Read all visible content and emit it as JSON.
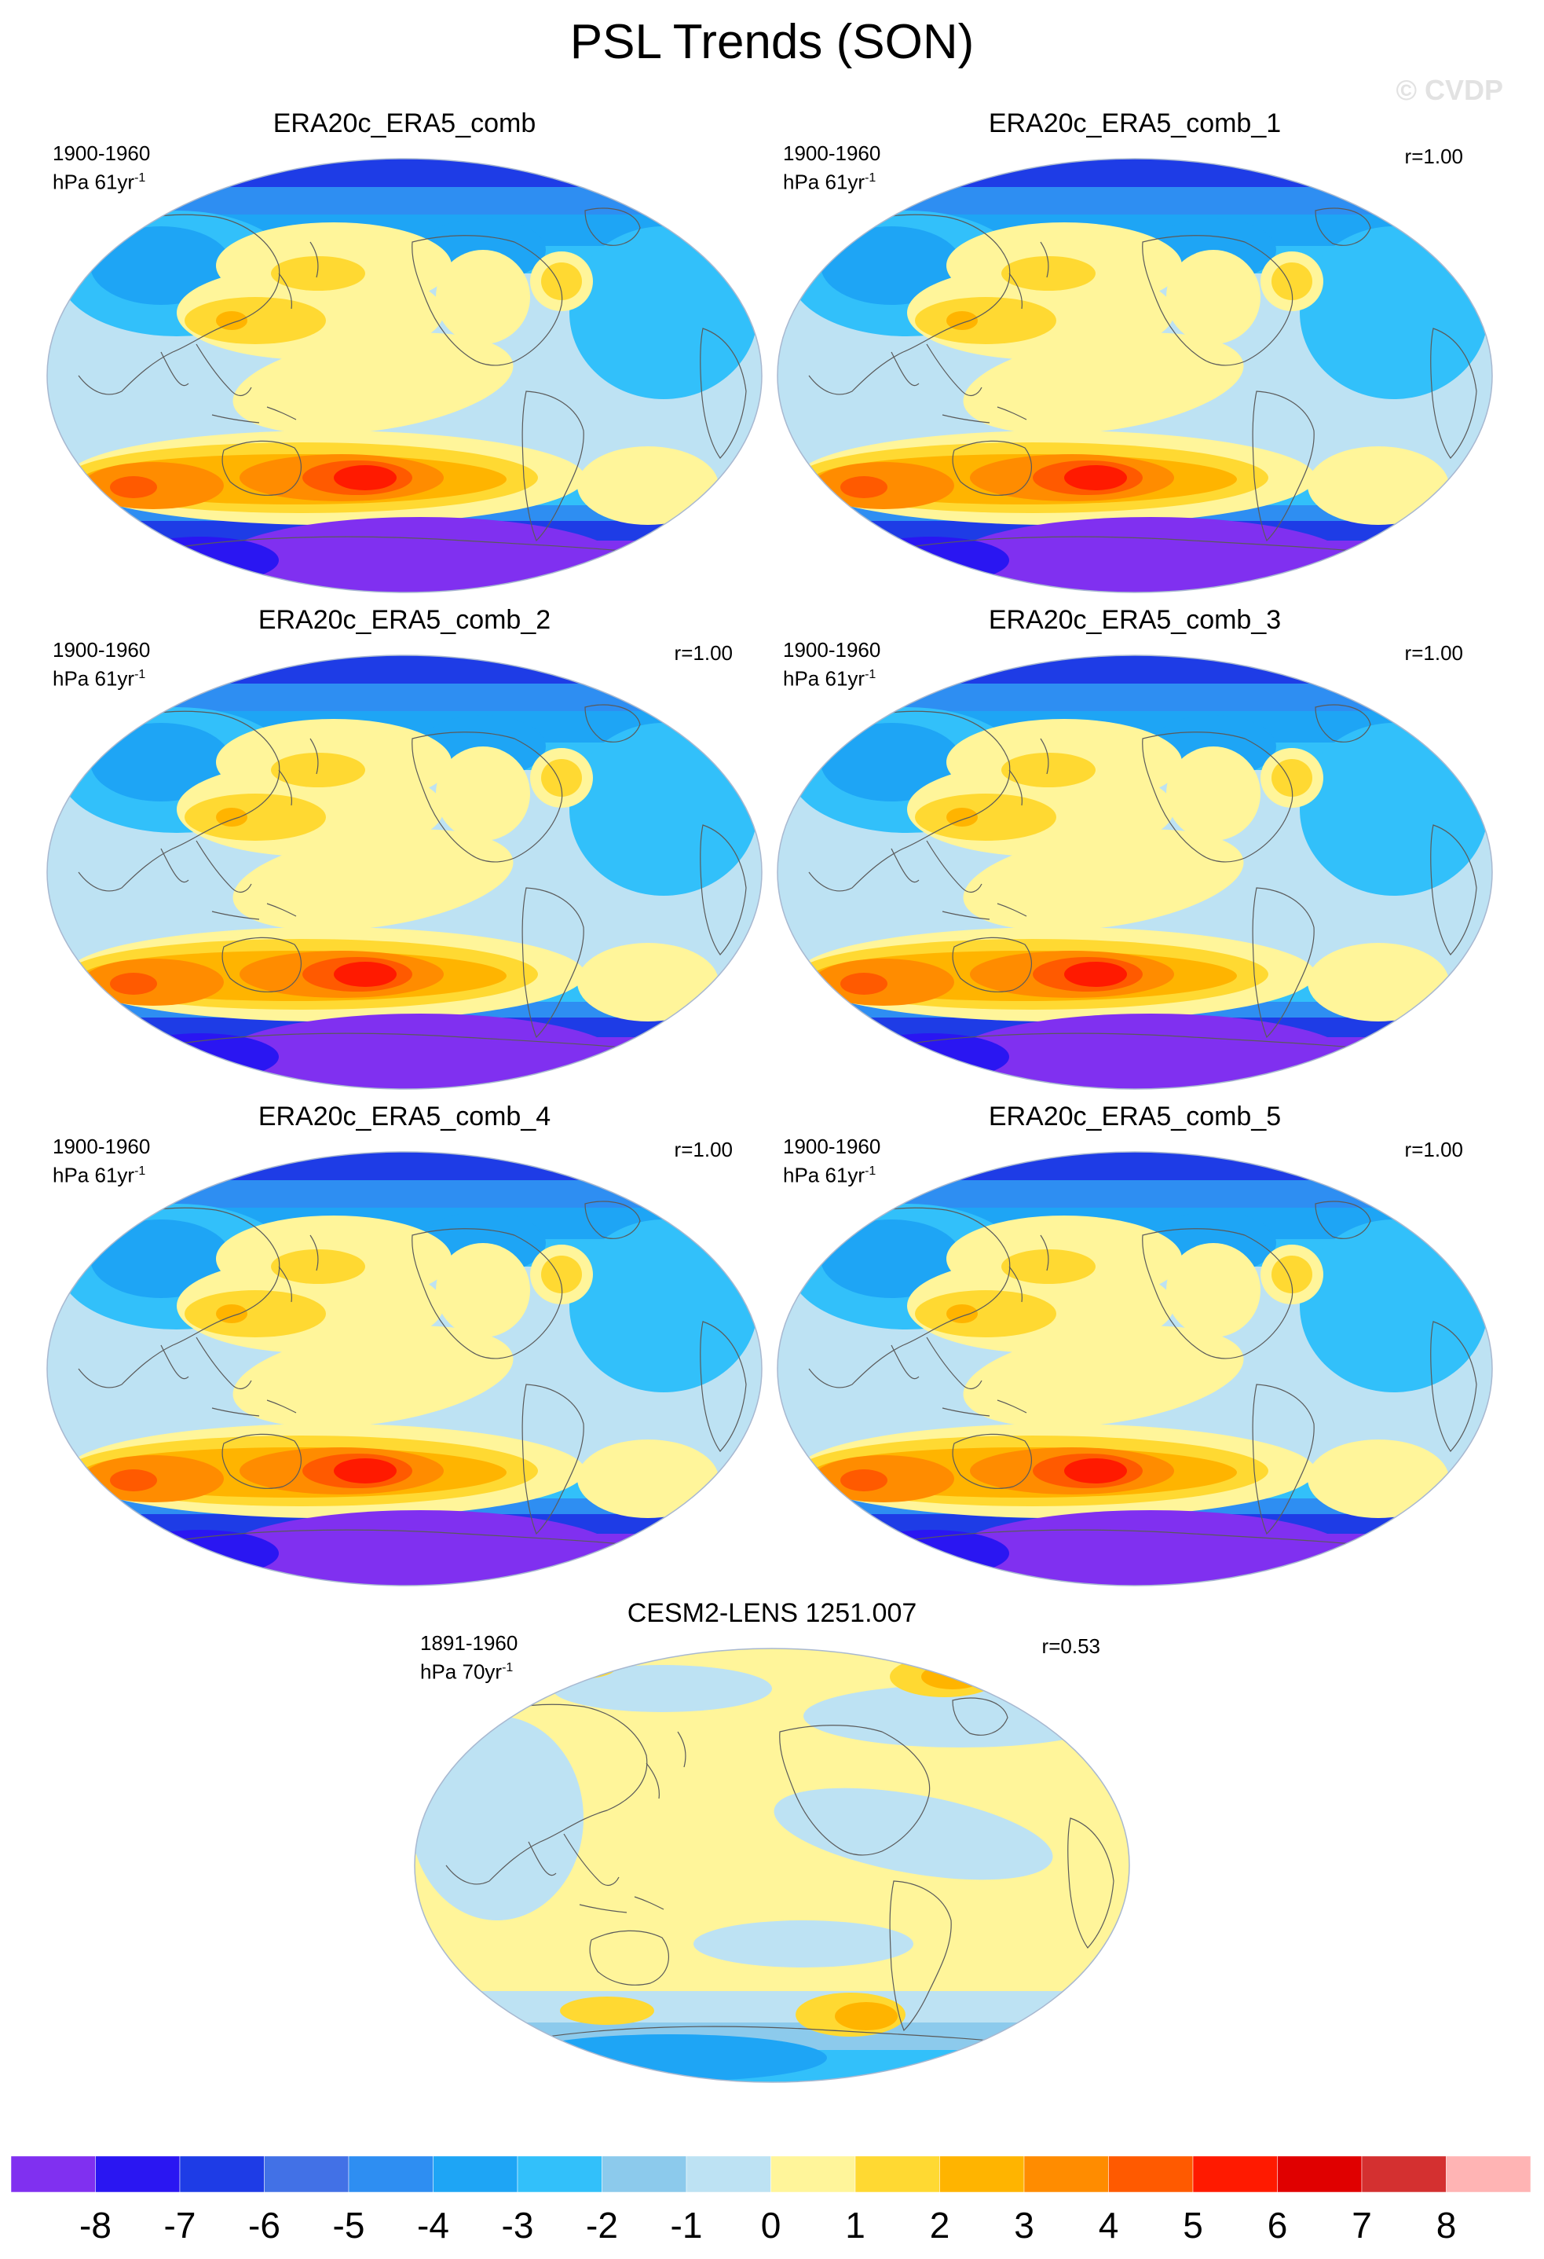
{
  "title": "PSL Trends (SON)",
  "watermark": "© CVDP",
  "panels": [
    {
      "title": "ERA20c_ERA5_comb",
      "period": "1900-1960",
      "units": "hPa 61yr",
      "units_exp": "-1",
      "corr": ""
    },
    {
      "title": "ERA20c_ERA5_comb_1",
      "period": "1900-1960",
      "units": "hPa 61yr",
      "units_exp": "-1",
      "corr": "r=1.00"
    },
    {
      "title": "ERA20c_ERA5_comb_2",
      "period": "1900-1960",
      "units": "hPa 61yr",
      "units_exp": "-1",
      "corr": "r=1.00"
    },
    {
      "title": "ERA20c_ERA5_comb_3",
      "period": "1900-1960",
      "units": "hPa 61yr",
      "units_exp": "-1",
      "corr": "r=1.00"
    },
    {
      "title": "ERA20c_ERA5_comb_4",
      "period": "1900-1960",
      "units": "hPa 61yr",
      "units_exp": "-1",
      "corr": "r=1.00"
    },
    {
      "title": "ERA20c_ERA5_comb_5",
      "period": "1900-1960",
      "units": "hPa 61yr",
      "units_exp": "-1",
      "corr": "r=1.00"
    },
    {
      "title": "CESM2-LENS 1251.007",
      "period": "1891-1960",
      "units": "hPa 70yr",
      "units_exp": "-1",
      "corr": "r=0.53"
    }
  ],
  "colorbar": {
    "labels": [
      "-8",
      "-7",
      "-6",
      "-5",
      "-4",
      "-3",
      "-2",
      "-1",
      "0",
      "1",
      "2",
      "3",
      "4",
      "5",
      "6",
      "7",
      "8"
    ],
    "colors": [
      "#8030f0",
      "#2a16f2",
      "#1e3ce6",
      "#4271e6",
      "#2e8ef2",
      "#1ea5f5",
      "#32c0fa",
      "#8ccaec",
      "#bde2f3",
      "#fff59a",
      "#ffd932",
      "#ffb400",
      "#ff8c00",
      "#ff5a00",
      "#ff1a00",
      "#e00000",
      "#d43030",
      "#ffb4b4"
    ]
  },
  "colors": {
    "background": "#ffffff",
    "coast": "#5a5a5a",
    "border": "#a8b8d0",
    "watermark": "#e2e2e2"
  }
}
